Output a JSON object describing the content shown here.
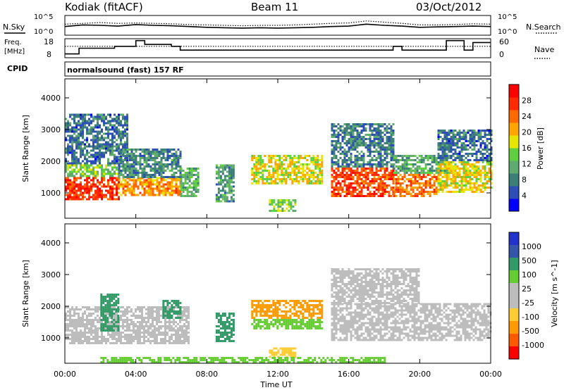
{
  "header": {
    "station": "Kodiak (fitACF)",
    "beam": "Beam 11",
    "date": "03/Oct/2012"
  },
  "strip_panels": {
    "nsky_label": "N.Sky",
    "nsearch_label": "N.Search",
    "noise_ticks": [
      "10^5",
      "10^0"
    ],
    "freq_label_1": "Freq.",
    "freq_label_2": "[MHz]",
    "freq_ticks": [
      "18",
      "8"
    ],
    "nave_label": "Nave",
    "nave_ticks": [
      "60",
      "0"
    ],
    "cpid_label": "CPID",
    "cpid_text": "normalsound (fast) 157 RF"
  },
  "colors": {
    "power_scale": [
      "#0000ff",
      "#2d4fb5",
      "#3d7f78",
      "#5faa6e",
      "#5fcf3f",
      "#e6e600",
      "#ffa500",
      "#ff6a00",
      "#ff2a00",
      "#ff0000"
    ],
    "velocity_scale": [
      "#ff0000",
      "#ff5a00",
      "#ff9a00",
      "#ffcc33",
      "#bdbdbd",
      "#bdbdbd",
      "#66cc33",
      "#339966",
      "#3355aa",
      "#2233cc"
    ]
  },
  "chart_data": [
    {
      "type": "heatmap",
      "panel": "power",
      "ylabel": "Slant Range [km]",
      "yticks": [
        "1000",
        "2000",
        "3000",
        "4000"
      ],
      "ylim": [
        200,
        4600
      ],
      "xlim": [
        "00:00",
        "24:00"
      ],
      "colorbar_label": "Power [dB]",
      "colorbar_ticks": [
        "4",
        "8",
        "12",
        "16",
        "20",
        "24",
        "28"
      ],
      "colorbar_range": [
        0,
        32
      ],
      "regions": [
        {
          "t0": 0.0,
          "t1": 3.0,
          "r0": 800,
          "r1": 1500,
          "value": 27
        },
        {
          "t0": 0.0,
          "t1": 3.0,
          "r0": 1500,
          "r1": 1900,
          "value": 14
        },
        {
          "t0": 0.0,
          "t1": 3.5,
          "r0": 1900,
          "r1": 3500,
          "value": 7
        },
        {
          "t0": 3.0,
          "t1": 6.5,
          "r0": 900,
          "r1": 1500,
          "value": 22
        },
        {
          "t0": 3.0,
          "t1": 6.5,
          "r0": 1500,
          "r1": 2400,
          "value": 9
        },
        {
          "t0": 6.5,
          "t1": 7.5,
          "r0": 900,
          "r1": 1800,
          "value": 12
        },
        {
          "t0": 8.5,
          "t1": 9.5,
          "r0": 700,
          "r1": 1900,
          "value": 10
        },
        {
          "t0": 10.5,
          "t1": 14.5,
          "r0": 1300,
          "r1": 2200,
          "value": 18
        },
        {
          "t0": 11.5,
          "t1": 13.0,
          "r0": 400,
          "r1": 800,
          "value": 14
        },
        {
          "t0": 15.0,
          "t1": 18.5,
          "r0": 900,
          "r1": 1800,
          "value": 26
        },
        {
          "t0": 15.0,
          "t1": 18.5,
          "r0": 1800,
          "r1": 3200,
          "value": 8
        },
        {
          "t0": 18.5,
          "t1": 21.0,
          "r0": 900,
          "r1": 1600,
          "value": 24
        },
        {
          "t0": 18.5,
          "t1": 21.5,
          "r0": 1600,
          "r1": 2200,
          "value": 11
        },
        {
          "t0": 21.0,
          "t1": 24.0,
          "r0": 1000,
          "r1": 2000,
          "value": 18
        },
        {
          "t0": 21.0,
          "t1": 24.0,
          "r0": 2000,
          "r1": 3000,
          "value": 7
        }
      ]
    },
    {
      "type": "heatmap",
      "panel": "velocity",
      "ylabel": "Slant Range [km]",
      "yticks": [
        "1000",
        "2000",
        "3000",
        "4000"
      ],
      "ylim": [
        200,
        4600
      ],
      "xlim": [
        "00:00",
        "24:00"
      ],
      "xticks": [
        "00:00",
        "04:00",
        "08:00",
        "12:00",
        "16:00",
        "20:00",
        "00:00"
      ],
      "xlabel": "Time UT",
      "colorbar_label": "Velocity [m s^-1]",
      "colorbar_ticks": [
        "-1000",
        "-500",
        "-100",
        "-25",
        "25",
        "100",
        "500",
        "1000"
      ],
      "regions": [
        {
          "t0": 0.0,
          "t1": 7.0,
          "r0": 800,
          "r1": 2000,
          "value": 0
        },
        {
          "t0": 2.0,
          "t1": 3.0,
          "r0": 1200,
          "r1": 2400,
          "value": 300
        },
        {
          "t0": 5.5,
          "t1": 6.5,
          "r0": 1600,
          "r1": 2200,
          "value": 300
        },
        {
          "t0": 8.5,
          "t1": 9.5,
          "r0": 900,
          "r1": 1800,
          "value": 300
        },
        {
          "t0": 10.5,
          "t1": 14.5,
          "r0": 1600,
          "r1": 2200,
          "value": -300
        },
        {
          "t0": 10.5,
          "t1": 14.5,
          "r0": 1300,
          "r1": 1600,
          "value": 60
        },
        {
          "t0": 11.5,
          "t1": 13.0,
          "r0": 400,
          "r1": 700,
          "value": -80
        },
        {
          "t0": 15.0,
          "t1": 24.0,
          "r0": 900,
          "r1": 2100,
          "value": 0
        },
        {
          "t0": 15.0,
          "t1": 20.0,
          "r0": 2100,
          "r1": 3200,
          "value": 0
        },
        {
          "t0": 2.0,
          "t1": 18.0,
          "r0": 200,
          "r1": 400,
          "value": 60
        }
      ]
    },
    {
      "type": "line",
      "panel": "noise",
      "series": [
        {
          "name": "N.Sky",
          "values": [
            2.2,
            2.6,
            2.5,
            2.3,
            2.7,
            2.5,
            2.4,
            2.2,
            2.0,
            1.9,
            1.8,
            1.9,
            1.8,
            1.9,
            2.0,
            2.2,
            2.3,
            2.8,
            2.5,
            2.3,
            2.0,
            2.1,
            2.2,
            2.3,
            2.2
          ]
        },
        {
          "name": "N.Search",
          "values": [
            2.8,
            3.0,
            3.2,
            3.0,
            3.1,
            3.0,
            2.9,
            2.7,
            2.6,
            2.5,
            2.4,
            2.5,
            2.5,
            2.6,
            2.8,
            3.0,
            3.1,
            3.6,
            3.3,
            3.0,
            2.6,
            2.6,
            2.7,
            2.9,
            2.8
          ]
        }
      ]
    },
    {
      "type": "line",
      "panel": "frequency",
      "series": [
        {
          "name": "Freq. [MHz]",
          "times": [
            0,
            0.8,
            0.8,
            2.8,
            2.8,
            4.0,
            4.0,
            4.5,
            4.5,
            6.0,
            6.0,
            6.5,
            6.5,
            18.5,
            18.5,
            19.0,
            19.0,
            21.5,
            21.5,
            22.5,
            22.5,
            23.0,
            23.0,
            24.0
          ],
          "values": [
            10,
            10,
            13,
            13,
            14,
            14,
            17,
            17,
            15,
            15,
            14,
            14,
            12,
            12,
            14,
            14,
            12,
            12,
            17,
            17,
            12,
            12,
            16,
            16
          ]
        },
        {
          "name": "Nave",
          "times": [
            0,
            24
          ],
          "values": [
            14,
            14
          ]
        }
      ]
    }
  ]
}
